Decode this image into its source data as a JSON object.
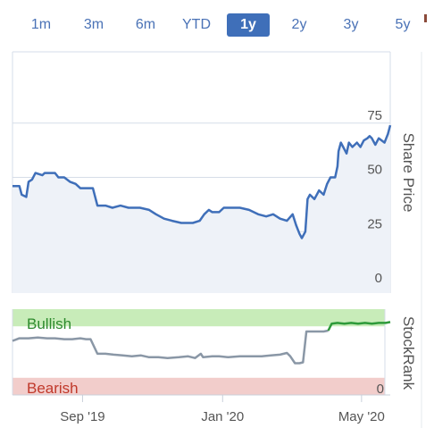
{
  "range_selector": {
    "options": [
      "1m",
      "3m",
      "6m",
      "YTD",
      "1y",
      "2y",
      "3y",
      "5y"
    ],
    "selected": "1y"
  },
  "colors": {
    "accent": "#3f6fb9",
    "price_line": "#3f6fb9",
    "stockrank_line": "#8a97a6",
    "stockrank_line_bullish": "#2e9a3a",
    "bullish_band": "#c8ecb9",
    "bearish_band": "#f2cdcb",
    "bullish_text": "#2e8b2e",
    "bearish_text": "#c0392b",
    "grid": "#d6dde8"
  },
  "chart_data": [
    {
      "type": "line",
      "title": "",
      "ylabel": "Share Price",
      "ylim": [
        0,
        100
      ],
      "yticks": [
        0,
        25,
        50,
        75
      ],
      "x_range": [
        "2019-07-06",
        "2020-05-30"
      ],
      "xticks": [
        {
          "date": "2019-09-05",
          "label": "Sep '19"
        },
        {
          "date": "2020-01-05",
          "label": "Jan '20"
        },
        {
          "date": "2020-05-05",
          "label": "May '20"
        }
      ],
      "series": [
        {
          "values": [
            [
              "2019-07-06",
              46
            ],
            [
              "2019-07-12",
              46
            ],
            [
              "2019-07-14",
              42
            ],
            [
              "2019-07-18",
              41
            ],
            [
              "2019-07-20",
              48
            ],
            [
              "2019-07-23",
              49
            ],
            [
              "2019-07-26",
              52
            ],
            [
              "2019-08-01",
              51
            ],
            [
              "2019-08-03",
              52
            ],
            [
              "2019-08-12",
              52
            ],
            [
              "2019-08-15",
              50
            ],
            [
              "2019-08-20",
              50
            ],
            [
              "2019-08-25",
              48
            ],
            [
              "2019-08-30",
              47
            ],
            [
              "2019-09-03",
              45
            ],
            [
              "2019-09-10",
              45
            ],
            [
              "2019-09-14",
              45
            ],
            [
              "2019-09-18",
              37
            ],
            [
              "2019-09-25",
              37
            ],
            [
              "2019-10-01",
              36
            ],
            [
              "2019-10-08",
              37
            ],
            [
              "2019-10-15",
              36
            ],
            [
              "2019-10-25",
              36
            ],
            [
              "2019-11-02",
              35
            ],
            [
              "2019-11-08",
              33
            ],
            [
              "2019-11-15",
              31
            ],
            [
              "2019-11-22",
              30
            ],
            [
              "2019-11-30",
              29
            ],
            [
              "2019-12-10",
              29
            ],
            [
              "2019-12-16",
              30
            ],
            [
              "2019-12-20",
              33
            ],
            [
              "2019-12-24",
              35
            ],
            [
              "2019-12-27",
              34
            ],
            [
              "2020-01-02",
              34
            ],
            [
              "2020-01-06",
              36
            ],
            [
              "2020-01-12",
              36
            ],
            [
              "2020-01-20",
              36
            ],
            [
              "2020-01-28",
              35
            ],
            [
              "2020-02-05",
              33
            ],
            [
              "2020-02-12",
              32
            ],
            [
              "2020-02-18",
              33
            ],
            [
              "2020-02-24",
              31
            ],
            [
              "2020-03-01",
              30
            ],
            [
              "2020-03-06",
              33
            ],
            [
              "2020-03-09",
              28
            ],
            [
              "2020-03-12",
              24
            ],
            [
              "2020-03-14",
              22
            ],
            [
              "2020-03-17",
              25
            ],
            [
              "2020-03-19",
              40
            ],
            [
              "2020-03-21",
              42
            ],
            [
              "2020-03-25",
              40
            ],
            [
              "2020-03-29",
              44
            ],
            [
              "2020-04-02",
              42
            ],
            [
              "2020-04-05",
              47
            ],
            [
              "2020-04-08",
              50
            ],
            [
              "2020-04-12",
              50
            ],
            [
              "2020-04-14",
              55
            ],
            [
              "2020-04-15",
              62
            ],
            [
              "2020-04-17",
              66
            ],
            [
              "2020-04-19",
              64
            ],
            [
              "2020-04-22",
              61
            ],
            [
              "2020-04-24",
              66
            ],
            [
              "2020-04-27",
              64
            ],
            [
              "2020-05-01",
              66
            ],
            [
              "2020-05-04",
              64
            ],
            [
              "2020-05-07",
              67
            ],
            [
              "2020-05-10",
              68
            ],
            [
              "2020-05-12",
              69
            ],
            [
              "2020-05-14",
              68
            ],
            [
              "2020-05-17",
              65
            ],
            [
              "2020-05-20",
              68
            ],
            [
              "2020-05-25",
              66
            ],
            [
              "2020-05-28",
              70
            ],
            [
              "2020-05-30",
              74
            ]
          ]
        }
      ]
    },
    {
      "type": "line",
      "title": "",
      "ylabel": "StockRank",
      "ylim": [
        0,
        100
      ],
      "yticks": [
        0
      ],
      "bands": {
        "bullish": {
          "label": "Bullish",
          "range": [
            80,
            100
          ]
        },
        "bearish": {
          "label": "Bearish",
          "range": [
            0,
            20
          ]
        }
      },
      "series": [
        {
          "values": [
            [
              "2019-07-06",
              63
            ],
            [
              "2019-07-12",
              66
            ],
            [
              "2019-07-20",
              66
            ],
            [
              "2019-07-28",
              67
            ],
            [
              "2019-08-05",
              66
            ],
            [
              "2019-08-12",
              66
            ],
            [
              "2019-08-20",
              65
            ],
            [
              "2019-08-27",
              65
            ],
            [
              "2019-09-03",
              66
            ],
            [
              "2019-09-08",
              65
            ],
            [
              "2019-09-12",
              65
            ],
            [
              "2019-09-18",
              48
            ],
            [
              "2019-09-25",
              48
            ],
            [
              "2019-10-02",
              47
            ],
            [
              "2019-10-10",
              46
            ],
            [
              "2019-10-18",
              45
            ],
            [
              "2019-10-26",
              46
            ],
            [
              "2019-11-02",
              44
            ],
            [
              "2019-11-10",
              44
            ],
            [
              "2019-11-18",
              43
            ],
            [
              "2019-11-28",
              44
            ],
            [
              "2019-12-06",
              45
            ],
            [
              "2019-12-12",
              43
            ],
            [
              "2019-12-17",
              48
            ],
            [
              "2019-12-19",
              44
            ],
            [
              "2019-12-27",
              45
            ],
            [
              "2020-01-02",
              45
            ],
            [
              "2020-01-10",
              44
            ],
            [
              "2020-01-20",
              45
            ],
            [
              "2020-01-30",
              45
            ],
            [
              "2020-02-08",
              45
            ],
            [
              "2020-02-16",
              46
            ],
            [
              "2020-02-24",
              47
            ],
            [
              "2020-03-01",
              49
            ],
            [
              "2020-03-04",
              45
            ],
            [
              "2020-03-08",
              37
            ],
            [
              "2020-03-12",
              37
            ],
            [
              "2020-03-15",
              38
            ],
            [
              "2020-03-18",
              74
            ],
            [
              "2020-03-25",
              74
            ],
            [
              "2020-04-02",
              74
            ],
            [
              "2020-04-06",
              75
            ]
          ]
        },
        {
          "values": [
            [
              "2020-04-06",
              75
            ],
            [
              "2020-04-09",
              83
            ],
            [
              "2020-04-14",
              84
            ],
            [
              "2020-04-20",
              83
            ],
            [
              "2020-04-26",
              84
            ],
            [
              "2020-05-02",
              83
            ],
            [
              "2020-05-08",
              84
            ],
            [
              "2020-05-14",
              83
            ],
            [
              "2020-05-20",
              84
            ],
            [
              "2020-05-26",
              84
            ],
            [
              "2020-05-30",
              85
            ]
          ]
        }
      ]
    }
  ]
}
